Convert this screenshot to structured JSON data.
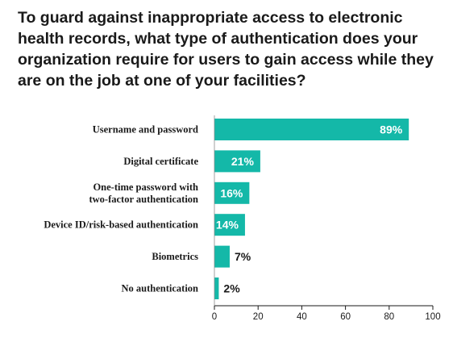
{
  "chart_data": {
    "type": "bar",
    "orientation": "horizontal",
    "title": "To guard against inappropriate access to electronic health records, what type of authentication does your organization require for users to gain access while they are on the job at one of your facilities?",
    "categories": [
      [
        "Username and password"
      ],
      [
        "Digital certificate"
      ],
      [
        "One-time password with",
        "two-factor authentication"
      ],
      [
        "Device ID/risk-based authentication"
      ],
      [
        "Biometrics"
      ],
      [
        "No authentication"
      ]
    ],
    "values": [
      89,
      21,
      16,
      14,
      7,
      2
    ],
    "value_labels": [
      "89%",
      "21%",
      "16%",
      "14%",
      "7%",
      "2%"
    ],
    "xlim": [
      0,
      100
    ],
    "xticks": [
      0,
      20,
      40,
      60,
      80,
      100
    ],
    "bar_color": "#14b8a8",
    "label_inside_color": "#ffffff",
    "label_outside_color": "#1a1a1a",
    "grid": false
  }
}
